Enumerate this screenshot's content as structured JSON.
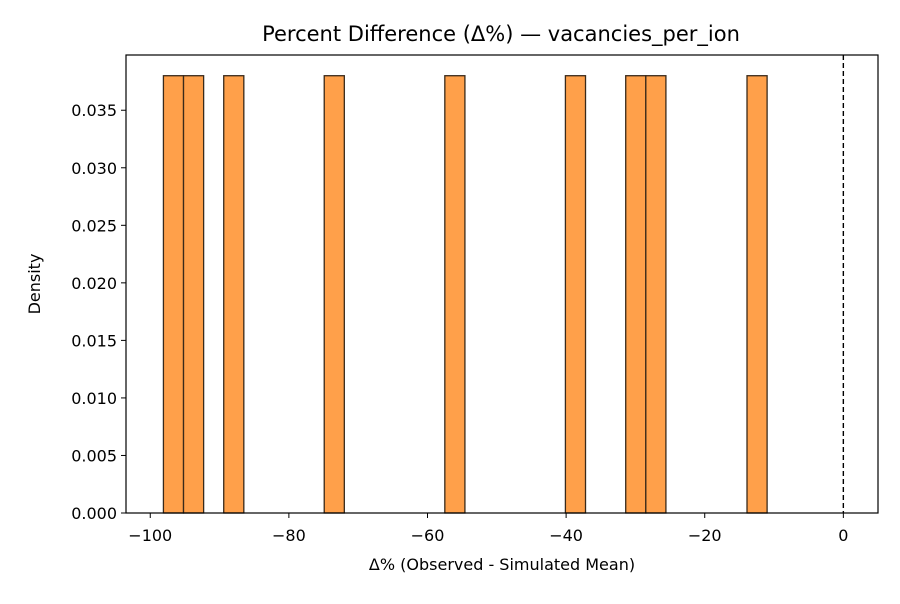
{
  "chart_data": {
    "type": "bar",
    "title": "Percent Difference (Δ%) — vacancies_per_ion",
    "xlabel": "Δ% (Observed - Simulated Mean)",
    "ylabel": "Density",
    "xlim": [
      -103.5,
      5
    ],
    "ylim": [
      0,
      0.0398
    ],
    "x_ticks": [
      -100,
      -80,
      -60,
      -40,
      -20,
      0
    ],
    "x_tick_labels": [
      "−100",
      "−80",
      "−60",
      "−40",
      "−20",
      "0"
    ],
    "y_ticks": [
      0,
      0.005,
      0.01,
      0.015,
      0.02,
      0.025,
      0.03,
      0.035
    ],
    "y_tick_labels": [
      "0.000",
      "0.005",
      "0.010",
      "0.015",
      "0.020",
      "0.025",
      "0.030",
      "0.035"
    ],
    "bins": [
      {
        "x0": -98.1,
        "x1": -95.2,
        "density": 0.038
      },
      {
        "x0": -95.2,
        "x1": -92.3,
        "density": 0.038
      },
      {
        "x0": -89.4,
        "x1": -86.5,
        "density": 0.038
      },
      {
        "x0": -74.9,
        "x1": -72.0,
        "density": 0.038
      },
      {
        "x0": -57.5,
        "x1": -54.6,
        "density": 0.038
      },
      {
        "x0": -40.1,
        "x1": -37.2,
        "density": 0.038
      },
      {
        "x0": -31.4,
        "x1": -28.5,
        "density": 0.038
      },
      {
        "x0": -28.5,
        "x1": -25.6,
        "density": 0.038
      },
      {
        "x0": -13.9,
        "x1": -11.0,
        "density": 0.038
      }
    ],
    "reference_line": {
      "x": 0,
      "style": "dashed",
      "color": "#000000"
    },
    "bar_color": "#ffa04a",
    "bar_edge_color": "#3a2a1a",
    "grid": false
  }
}
